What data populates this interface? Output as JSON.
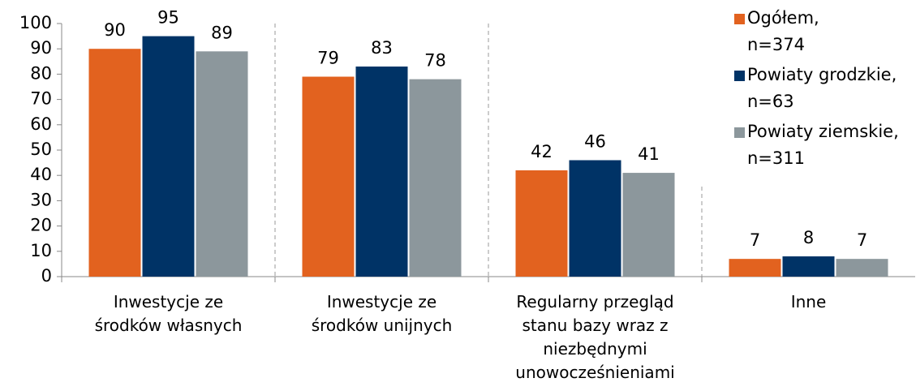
{
  "chart_data": {
    "type": "bar",
    "categories": [
      "Inwestycje ze\nśrodków  własnych",
      "Inwestycje ze\nśrodków  unijnych",
      "Regularny przegląd\nstanu  bazy wraz z\nniezbędnymi\nunowocześnieniami",
      "Inne"
    ],
    "series": [
      {
        "name": "Ogółem,\nn=374",
        "color": "#e2621f",
        "values": [
          90,
          79,
          42,
          7
        ]
      },
      {
        "name": "Powiaty grodzkie,\nn=63",
        "color": "#003366",
        "values": [
          95,
          83,
          46,
          8
        ]
      },
      {
        "name": "Powiaty ziemskie,\nn=311",
        "color": "#8c979c",
        "values": [
          89,
          78,
          41,
          7
        ]
      }
    ],
    "ylim": [
      0,
      100
    ],
    "yticks": [
      0,
      10,
      20,
      30,
      40,
      50,
      60,
      70,
      80,
      90,
      100
    ],
    "legend": "right"
  }
}
